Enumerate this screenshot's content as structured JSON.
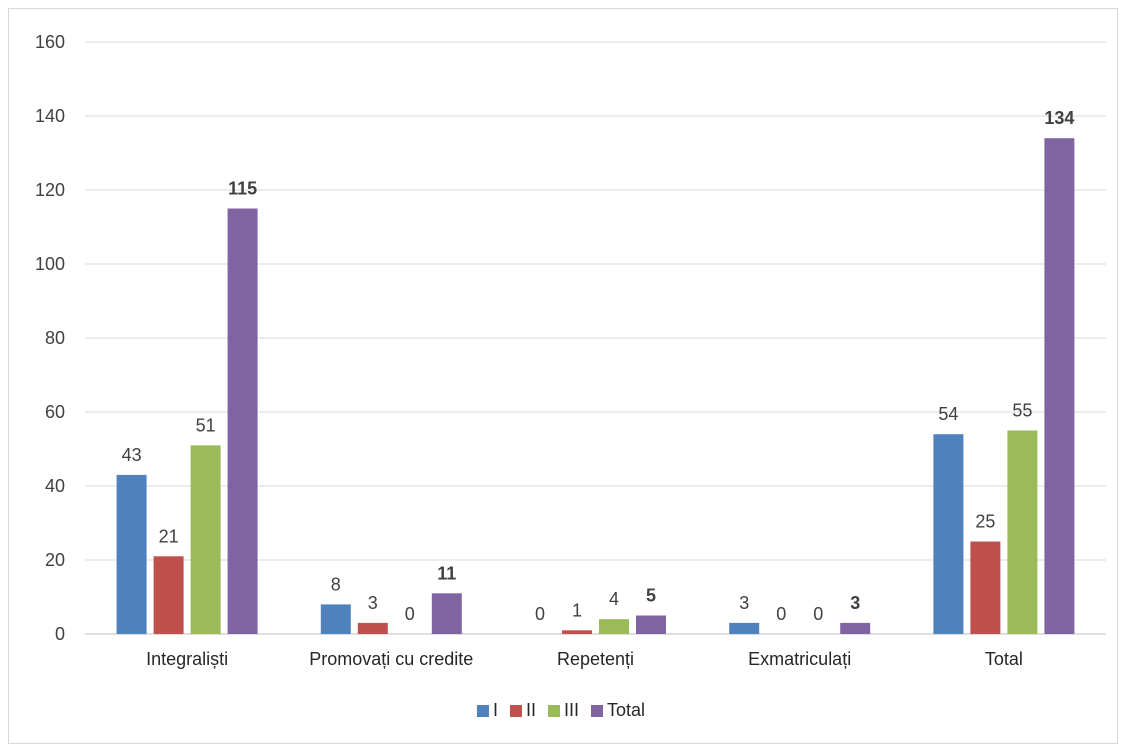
{
  "chart_data": {
    "type": "bar",
    "title": "",
    "xlabel": "",
    "ylabel": "",
    "ylim": [
      0,
      160
    ],
    "yticks": [
      0,
      20,
      40,
      60,
      80,
      100,
      120,
      140,
      160
    ],
    "grid": true,
    "legend_position": "bottom",
    "categories": [
      "Integraliști",
      "Promovați cu credite",
      "Repetenți",
      "Exmatriculați",
      "Total"
    ],
    "series": [
      {
        "name": "I",
        "color": "#4F81BD",
        "values": [
          43,
          8,
          0,
          3,
          54
        ],
        "bold_labels": false
      },
      {
        "name": "II",
        "color": "#C0504D",
        "values": [
          21,
          3,
          1,
          0,
          25
        ],
        "bold_labels": false
      },
      {
        "name": "III",
        "color": "#9BBB59",
        "values": [
          51,
          0,
          4,
          0,
          55
        ],
        "bold_labels": false
      },
      {
        "name": "Total",
        "color": "#8064A2",
        "values": [
          115,
          11,
          5,
          3,
          134
        ],
        "bold_labels": true
      }
    ]
  }
}
